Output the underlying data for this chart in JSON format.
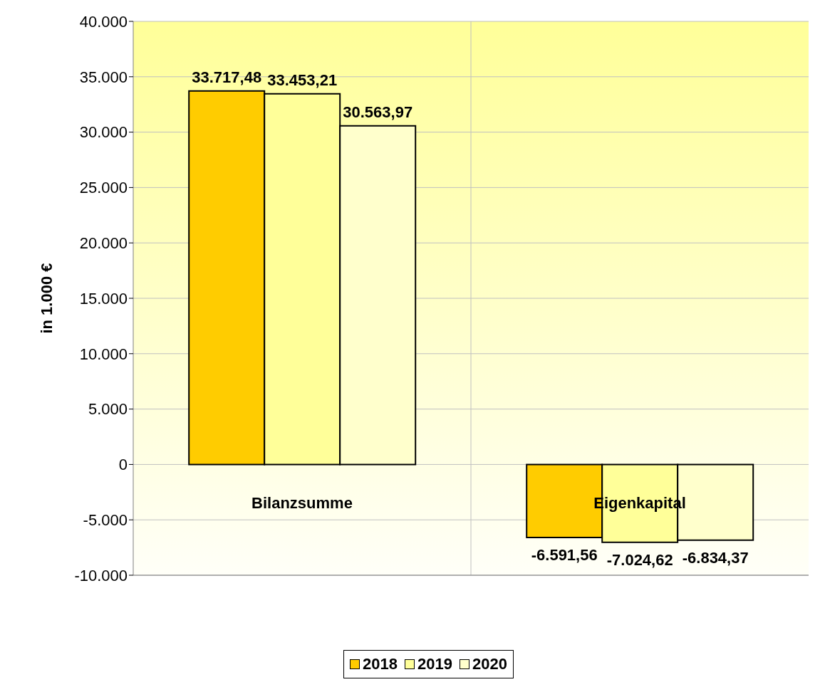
{
  "chart_data": {
    "type": "bar",
    "ylabel": "in 1.000 €",
    "categories": [
      "Bilanzsumme",
      "Eigenkapital"
    ],
    "series": [
      {
        "name": "2018",
        "color": "#ffcc00",
        "values": [
          33717.48,
          -6591.56
        ],
        "value_labels": [
          "33.717,48",
          "-6.591,56"
        ]
      },
      {
        "name": "2019",
        "color": "#ffff99",
        "values": [
          33453.21,
          -7024.62
        ],
        "value_labels": [
          "33.453,21",
          "-7.024,62"
        ]
      },
      {
        "name": "2020",
        "color": "#ffffcc",
        "values": [
          30563.97,
          -6834.37
        ],
        "value_labels": [
          "30.563,97",
          "-6.834,37"
        ]
      }
    ],
    "ylim": [
      -10000,
      40000
    ],
    "yticks": [
      {
        "value": -10000,
        "label": "-10.000"
      },
      {
        "value": -5000,
        "label": "-5.000"
      },
      0,
      {
        "value": 5000,
        "label": "5.000"
      },
      {
        "value": 10000,
        "label": "10.000"
      },
      {
        "value": 15000,
        "label": "15.000"
      },
      {
        "value": 20000,
        "label": "20.000"
      },
      {
        "value": 25000,
        "label": "25.000"
      },
      {
        "value": 30000,
        "label": "30.000"
      },
      {
        "value": 35000,
        "label": "35.000"
      },
      {
        "value": 40000,
        "label": "40.000"
      }
    ],
    "grid": true,
    "legend": "bottom"
  }
}
